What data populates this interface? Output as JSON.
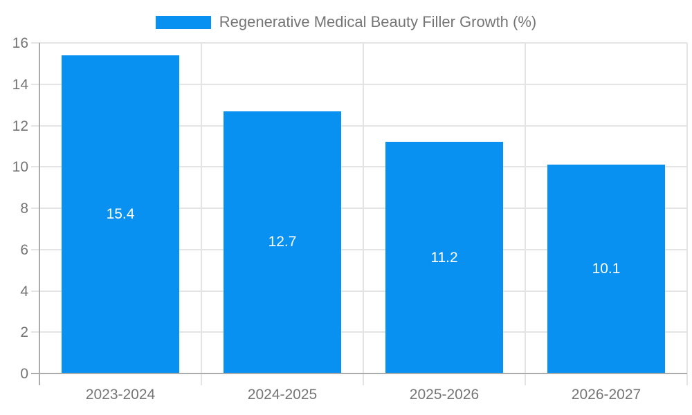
{
  "chart_data": {
    "type": "bar",
    "title": "Regenerative Medical Beauty Filler Growth (%)",
    "series_name": "Regenerative Medical Beauty Filler Growth (%)",
    "categories": [
      "2023-2024",
      "2024-2025",
      "2025-2026",
      "2026-2027"
    ],
    "values": [
      15.4,
      12.7,
      11.2,
      10.1
    ],
    "value_labels": [
      "15.4",
      "12.7",
      "11.2",
      "10.1"
    ],
    "xlabel": "",
    "ylabel": "",
    "ylim": [
      0,
      16
    ],
    "yticks": [
      0,
      2,
      4,
      6,
      8,
      10,
      12,
      14,
      16
    ],
    "grid": true,
    "legend_position": "top-center",
    "value_label_position": "inside-center",
    "colors": {
      "bar": "#0991f2",
      "value_label": "#ffffff",
      "gridline": "#e4e4e4",
      "axis_line": "#ababab",
      "tick_label_text": "#757575",
      "legend_text": "#757575",
      "background": "#ffffff"
    }
  }
}
